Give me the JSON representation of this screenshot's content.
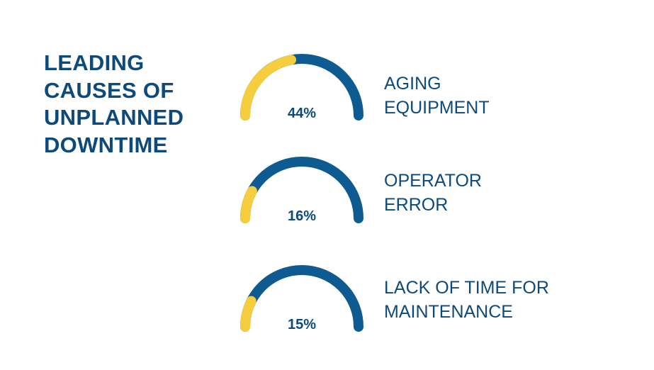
{
  "title_lines": [
    "LEADING",
    "CAUSES OF",
    "UNPLANNED",
    "DOWNTIME"
  ],
  "colors": {
    "title": "#0d4a7c",
    "track": "#0d5b91",
    "fill": "#f6cd3f",
    "value_text": "#0d4a7c",
    "label_text": "#0d4a7c"
  },
  "chart_data": {
    "type": "gauge",
    "title": "LEADING CAUSES OF UNPLANNED DOWNTIME",
    "unit": "%",
    "range": [
      0,
      100
    ],
    "items": [
      {
        "value": 44,
        "value_label": "44%",
        "label_lines": [
          "AGING",
          "EQUIPMENT"
        ]
      },
      {
        "value": 16,
        "value_label": "16%",
        "label_lines": [
          "OPERATOR",
          "ERROR"
        ]
      },
      {
        "value": 15,
        "value_label": "15%",
        "label_lines": [
          "LACK OF TIME FOR",
          "MAINTENANCE"
        ]
      }
    ]
  }
}
